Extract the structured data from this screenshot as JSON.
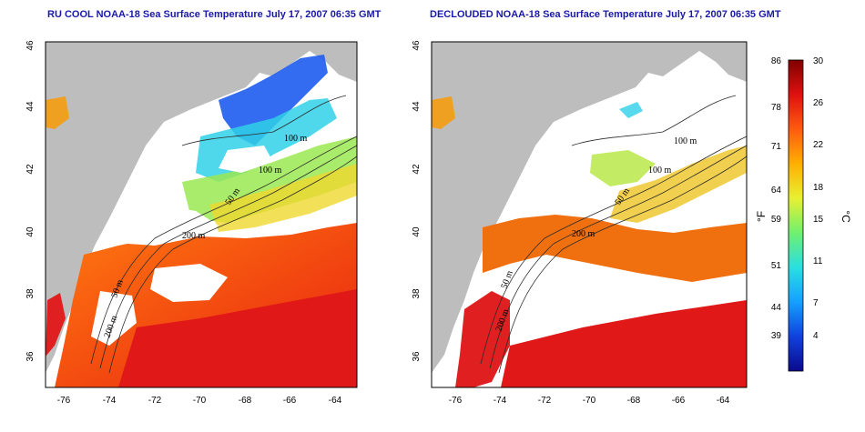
{
  "maps": [
    {
      "title": "RU COOL NOAA-18 Sea Surface Temperature July 17, 2007 06:35 GMT",
      "x_ticks": [
        "-76",
        "-74",
        "-72",
        "-70",
        "-68",
        "-66",
        "-64"
      ],
      "y_ticks": [
        "46",
        "44",
        "42",
        "40",
        "38",
        "36"
      ],
      "contour_labels": [
        "100 m",
        "100 m",
        "50 m",
        "200 m",
        "50 m",
        "200 m"
      ]
    },
    {
      "title": "DECLOUDED NOAA-18 Sea Surface Temperature July 17, 2007 06:35 GMT",
      "x_ticks": [
        "-76",
        "-74",
        "-72",
        "-70",
        "-68",
        "-66",
        "-64"
      ],
      "y_ticks": [
        "46",
        "44",
        "42",
        "40",
        "38",
        "36"
      ],
      "contour_labels": [
        "100 m",
        "100 m",
        "50 m",
        "200 m",
        "50 m",
        "200 m"
      ]
    }
  ],
  "colorbar": {
    "fahrenheit_label": "°F",
    "celsius_label": "°C",
    "fahrenheit_ticks": [
      "86",
      "78",
      "71",
      "64",
      "59",
      "51",
      "44",
      "39"
    ],
    "celsius_ticks": [
      "30",
      "26",
      "22",
      "18",
      "15",
      "11",
      "7",
      "4"
    ],
    "colors": [
      "#0a0a8a",
      "#1040e0",
      "#14a0ff",
      "#28e0e0",
      "#70f070",
      "#e8f030",
      "#ffb000",
      "#ff5a10",
      "#e01010",
      "#800000"
    ]
  },
  "colors": {
    "land": "#bdbdbd",
    "cloud": "#ffffff",
    "title": "#1a1aa8"
  }
}
